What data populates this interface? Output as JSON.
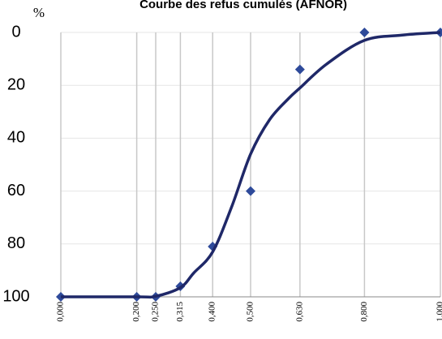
{
  "chart_data": {
    "type": "line",
    "title": "Courbe des refus cumulés (AFNOR)",
    "y_label": "%",
    "xlim": [
      0,
      1
    ],
    "ylim": [
      0,
      100
    ],
    "y_reversed": true,
    "grid": true,
    "xticks": [
      {
        "value": 0,
        "label": "0,000"
      },
      {
        "value": 0.2,
        "label": "0,200"
      },
      {
        "value": 0.25,
        "label": "0,250"
      },
      {
        "value": 0.315,
        "label": "0,315"
      },
      {
        "value": 0.4,
        "label": "0,400"
      },
      {
        "value": 0.5,
        "label": "0,500"
      },
      {
        "value": 0.63,
        "label": "0,630"
      },
      {
        "value": 0.8,
        "label": "0,800"
      },
      {
        "value": 1,
        "label": "1,000"
      }
    ],
    "yticks": [
      0,
      20,
      40,
      60,
      80,
      100
    ],
    "series": [
      {
        "x": [
          0,
          0.2,
          0.25,
          0.315,
          0.4,
          0.5,
          0.63,
          0.8,
          1
        ],
        "values": [
          100,
          100,
          100,
          96,
          81,
          60,
          14,
          0,
          0
        ],
        "color": "#2e4a9a",
        "marker": "diamond",
        "line": false
      },
      {
        "x": [
          0,
          0.2,
          0.25,
          0.315,
          0.35,
          0.4,
          0.45,
          0.5,
          0.55,
          0.6,
          0.63,
          0.7,
          0.8,
          0.9,
          1
        ],
        "values": [
          100,
          100,
          99.8,
          96.5,
          91,
          83,
          66,
          46,
          33,
          25,
          21,
          12,
          3,
          1,
          0
        ],
        "color": "#1f2868",
        "marker": null,
        "line": true,
        "smooth": true
      }
    ]
  }
}
